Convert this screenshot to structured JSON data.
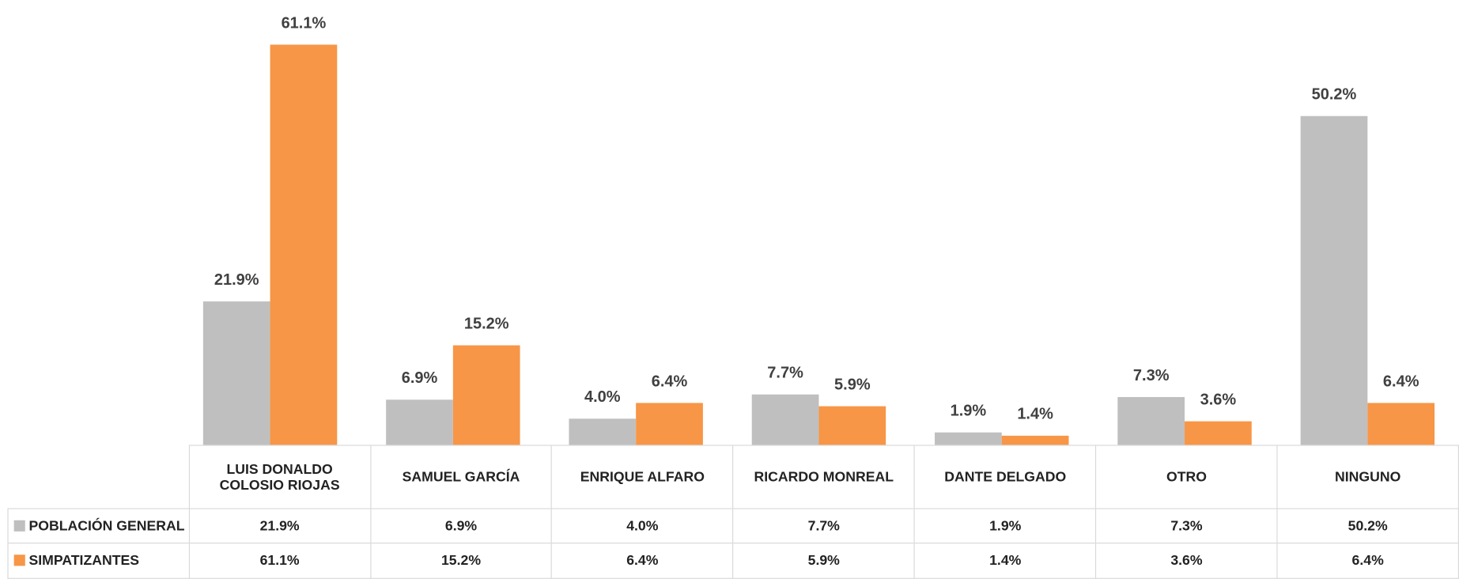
{
  "chart_data": {
    "type": "bar",
    "categories": [
      "LUIS DONALDO COLOSIO RIOJAS",
      "SAMUEL GARCÍA",
      "ENRIQUE ALFARO",
      "RICARDO MONREAL",
      "DANTE DELGADO",
      "OTRO",
      "NINGUNO"
    ],
    "series": [
      {
        "name": "POBLACIÓN GENERAL",
        "color": "#bfbfbf",
        "values": [
          21.9,
          6.9,
          4.0,
          7.7,
          1.9,
          7.3,
          50.2
        ],
        "value_labels": [
          "21.9%",
          "6.9%",
          "4.0%",
          "7.7%",
          "1.9%",
          "7.3%",
          "50.2%"
        ]
      },
      {
        "name": "SIMPATIZANTES",
        "color": "#f79646",
        "values": [
          61.1,
          15.2,
          6.4,
          5.9,
          1.4,
          3.6,
          6.4
        ],
        "value_labels": [
          "61.1%",
          "15.2%",
          "6.4%",
          "5.9%",
          "1.4%",
          "3.6%",
          "6.4%"
        ]
      }
    ]
  }
}
